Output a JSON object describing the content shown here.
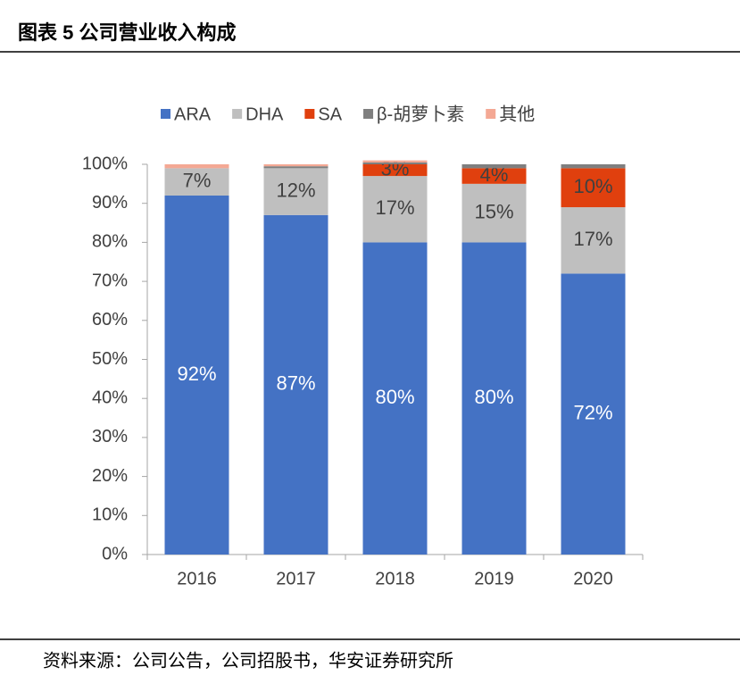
{
  "title": "图表 5 公司营业收入构成",
  "source": "资料来源：公司公告，公司招股书，华安证券研究所",
  "chart_data": {
    "type": "stacked_bar",
    "categories": [
      "2016",
      "2017",
      "2018",
      "2019",
      "2020"
    ],
    "series": [
      {
        "name": "ARA",
        "color": "#4472c4",
        "values": [
          92,
          87,
          80,
          80,
          72
        ],
        "value_labels": [
          "92%",
          "87%",
          "80%",
          "80%",
          "72%"
        ]
      },
      {
        "name": "DHA",
        "color": "#bfbfbf",
        "values": [
          7,
          12,
          17,
          15,
          17
        ],
        "value_labels": [
          "7%",
          "12%",
          "17%",
          "15%",
          "17%"
        ]
      },
      {
        "name": "SA",
        "color": "#e0400e",
        "values": [
          0,
          0,
          3,
          4,
          10
        ],
        "value_labels": [
          null,
          null,
          "3%",
          "4%",
          "10%"
        ]
      },
      {
        "name": "β-胡萝卜素",
        "color": "#7f7f7f",
        "values": [
          0,
          0.5,
          0.5,
          1,
          1
        ]
      },
      {
        "name": "其他",
        "color": "#f4a894",
        "values": [
          1,
          0.5,
          0.5,
          0,
          0
        ]
      }
    ],
    "ylim": [
      0,
      100
    ],
    "yticks": [
      {
        "value": 0,
        "label": "0%"
      },
      {
        "value": 10,
        "label": "10%"
      },
      {
        "value": 20,
        "label": "20%"
      },
      {
        "value": 30,
        "label": "30%"
      },
      {
        "value": 40,
        "label": "40%"
      },
      {
        "value": 50,
        "label": "50%"
      },
      {
        "value": 60,
        "label": "60%"
      },
      {
        "value": 70,
        "label": "70%"
      },
      {
        "value": 80,
        "label": "80%"
      },
      {
        "value": 90,
        "label": "90%"
      },
      {
        "value": 100,
        "label": "100%"
      }
    ],
    "legend": "top"
  }
}
